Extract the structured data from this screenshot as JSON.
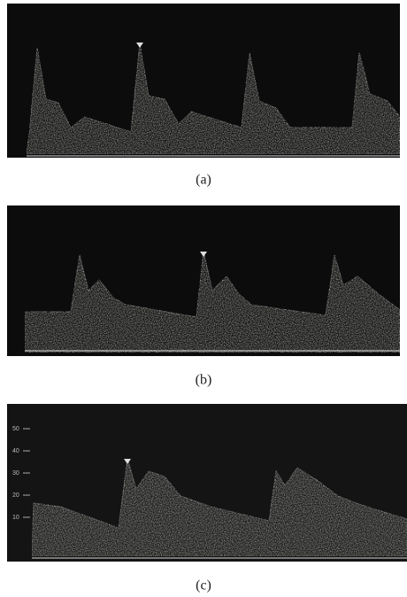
{
  "panels": [
    {
      "caption": "(a)"
    },
    {
      "caption": "(b)"
    },
    {
      "caption": "(c)",
      "scale_labels": [
        50,
        40,
        30,
        20,
        10
      ]
    }
  ]
}
